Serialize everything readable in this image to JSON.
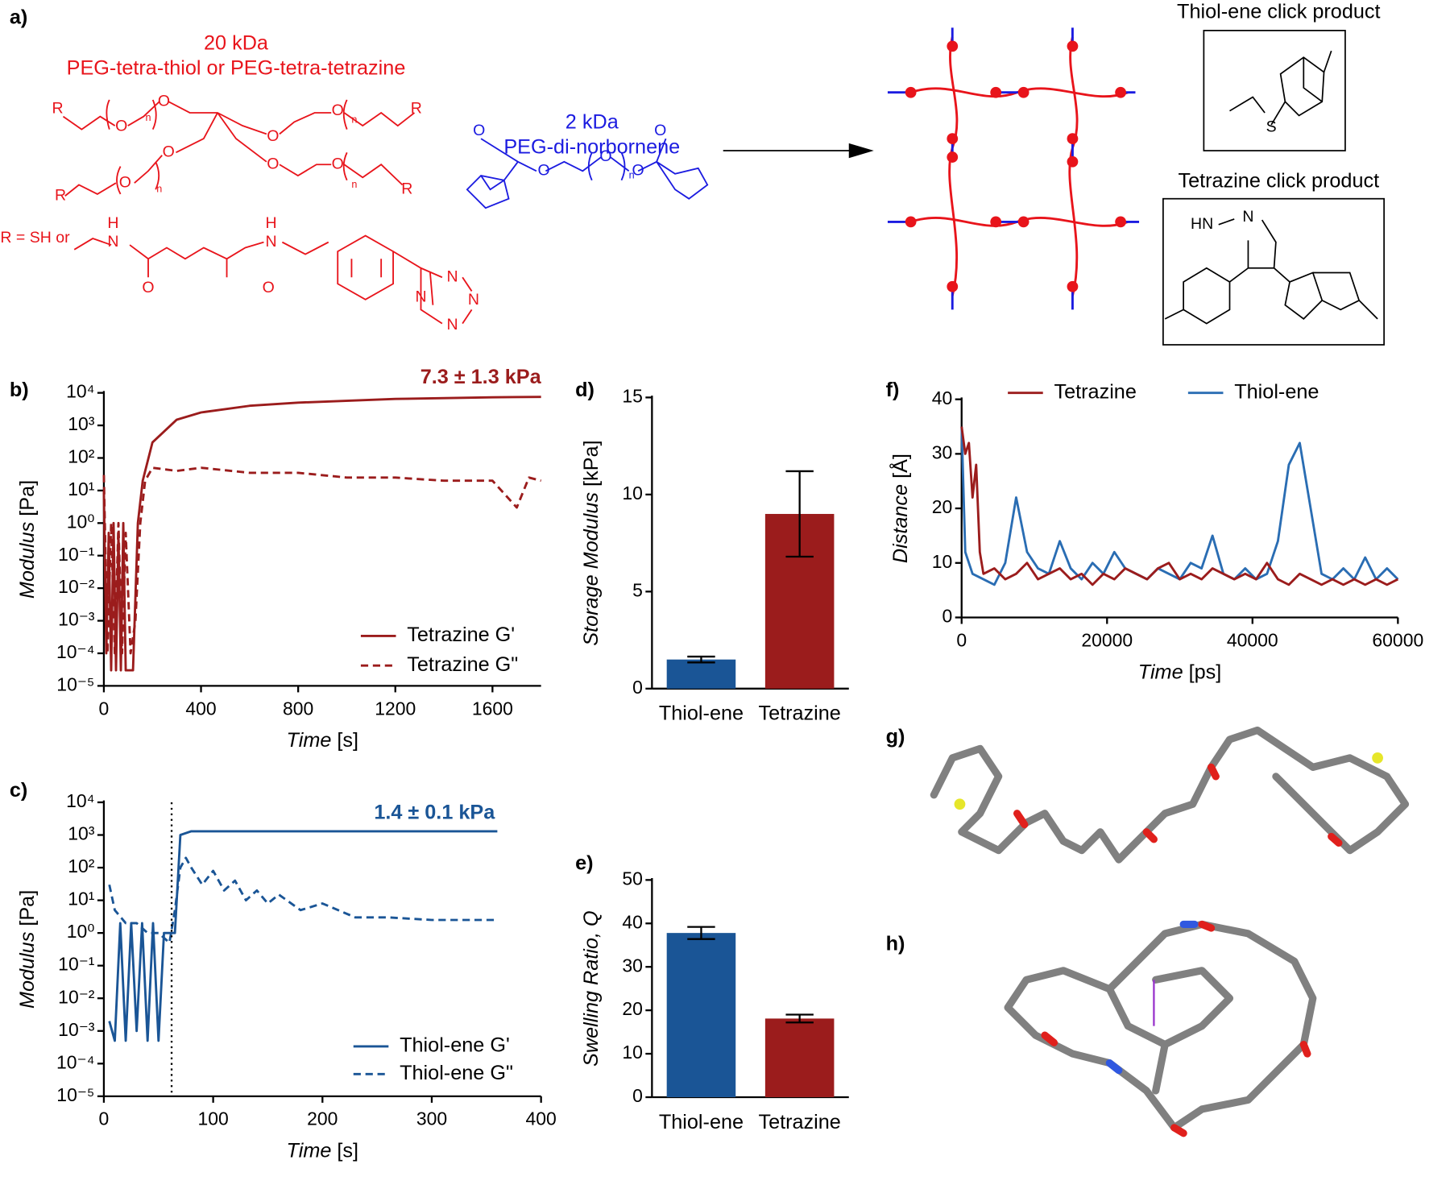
{
  "scheme": {
    "label": "a)",
    "peg4_mw": "20 kDa",
    "peg4_name": "PEG-tetra-thiol or PEG-tetra-tetrazine",
    "r_def": "R = SH or",
    "peg2_mw": "2 kDa",
    "peg2_name": "PEG-di-norbornene",
    "thiol_product": "Thiol-ene click product",
    "tetrazine_product": "Tetrazine click product",
    "atoms": [
      "R",
      "O",
      "n",
      "H",
      "N",
      "S",
      "HN"
    ]
  },
  "panel_labels": {
    "g": "g)",
    "h": "h)"
  },
  "chart_data": [
    {
      "type": "line",
      "panel": "b)",
      "annotation": "7.3 ± 1.3 kPa",
      "annotation_color": "#9b1c1c",
      "xlabel": "Time",
      "xlabel_unit": "[s]",
      "ylabel": "Modulus",
      "ylabel_unit": "[Pa]",
      "xlim": [
        0,
        1800
      ],
      "xticks": [
        0,
        400,
        800,
        1200,
        1600
      ],
      "yscale": "log",
      "ylim": [
        1e-05,
        10000
      ],
      "yticks": [
        {
          "value": 10000,
          "label": "10⁴"
        },
        {
          "value": 1000,
          "label": "10³"
        },
        {
          "value": 100,
          "label": "10²"
        },
        {
          "value": 10,
          "label": "10¹"
        },
        {
          "value": 1,
          "label": "10⁰"
        },
        {
          "value": 0.1,
          "label": "10⁻¹"
        },
        {
          "value": 0.01,
          "label": "10⁻²"
        },
        {
          "value": 0.001,
          "label": "10⁻³"
        },
        {
          "value": 0.0001,
          "label": "10⁻⁴"
        },
        {
          "value": 1e-05,
          "label": "10⁻⁵"
        }
      ],
      "legend": "lower right",
      "series": [
        {
          "name": "Tetrazine G'",
          "color": "#9b1c1c",
          "dash": false,
          "x": [
            0,
            10,
            20,
            30,
            40,
            50,
            60,
            70,
            80,
            90,
            100,
            120,
            140,
            160,
            200,
            300,
            400,
            600,
            800,
            1200,
            1600,
            1800
          ],
          "values": [
            10,
            0.0001,
            0.5,
            3e-05,
            1,
            3e-05,
            0.5,
            3e-05,
            1,
            3e-05,
            3e-05,
            3e-05,
            1,
            20,
            300,
            1500,
            2500,
            4000,
            5000,
            6500,
            7300,
            7500
          ]
        },
        {
          "name": "Tetrazine G\"",
          "color": "#9b1c1c",
          "dash": true,
          "x": [
            0,
            15,
            30,
            45,
            60,
            75,
            90,
            110,
            130,
            150,
            170,
            200,
            300,
            400,
            600,
            800,
            1000,
            1200,
            1400,
            1600,
            1700,
            1750,
            1800
          ],
          "values": [
            30,
            0.0001,
            1,
            0.0001,
            1,
            0.0001,
            0.5,
            0.0001,
            0.001,
            1,
            20,
            50,
            40,
            50,
            35,
            35,
            25,
            25,
            20,
            20,
            3,
            25,
            20
          ]
        }
      ]
    },
    {
      "type": "line",
      "panel": "c)",
      "annotation": "1.4 ± 0.1 kPa",
      "annotation_color": "#1a5596",
      "xlabel": "Time",
      "xlabel_unit": "[s]",
      "ylabel": "Modulus",
      "ylabel_unit": "[Pa]",
      "xlim": [
        0,
        400
      ],
      "xticks": [
        0,
        100,
        200,
        300,
        400
      ],
      "yscale": "log",
      "ylim": [
        1e-05,
        10000
      ],
      "yticks": [
        {
          "value": 10000,
          "label": "10⁴"
        },
        {
          "value": 1000,
          "label": "10³"
        },
        {
          "value": 100,
          "label": "10²"
        },
        {
          "value": 10,
          "label": "10¹"
        },
        {
          "value": 1,
          "label": "10⁰"
        },
        {
          "value": 0.1,
          "label": "10⁻¹"
        },
        {
          "value": 0.01,
          "label": "10⁻²"
        },
        {
          "value": 0.001,
          "label": "10⁻³"
        },
        {
          "value": 0.0001,
          "label": "10⁻⁴"
        },
        {
          "value": 1e-05,
          "label": "10⁻⁵"
        }
      ],
      "vline": 62,
      "legend": "lower right",
      "series": [
        {
          "name": "Thiol-ene G'",
          "color": "#1a5596",
          "dash": false,
          "x": [
            5,
            10,
            15,
            20,
            25,
            30,
            35,
            40,
            45,
            50,
            55,
            60,
            65,
            70,
            80,
            100,
            200,
            300,
            360
          ],
          "values": [
            0.002,
            0.0005,
            2,
            0.0005,
            2,
            0.001,
            2,
            0.0005,
            2,
            0.0005,
            1,
            1,
            1,
            1000,
            1300,
            1300,
            1300,
            1300,
            1300
          ]
        },
        {
          "name": "Thiol-ene G\"",
          "color": "#1a5596",
          "dash": true,
          "x": [
            5,
            10,
            20,
            30,
            40,
            50,
            60,
            65,
            70,
            75,
            80,
            90,
            100,
            110,
            120,
            130,
            140,
            150,
            160,
            180,
            200,
            230,
            260,
            300,
            360
          ],
          "values": [
            30,
            5,
            2,
            2,
            1,
            1,
            0.5,
            5,
            100,
            200,
            100,
            30,
            80,
            20,
            40,
            10,
            20,
            8,
            15,
            5,
            8,
            3,
            3,
            2.5,
            2.5
          ]
        }
      ]
    },
    {
      "type": "bar",
      "panel": "d)",
      "ylabel": "Storage Modulus",
      "ylabel_unit": "[kPa]",
      "categories": [
        "Thiol-ene",
        "Tetrazine"
      ],
      "values": [
        1.5,
        9.0
      ],
      "errors": [
        0.15,
        2.2
      ],
      "colors": [
        "#1a5596",
        "#9b1c1c"
      ],
      "ylim": [
        0,
        15
      ],
      "yticks": [
        0,
        5,
        10,
        15
      ]
    },
    {
      "type": "bar",
      "panel": "e)",
      "ylabel": "Swelling Ratio, Q",
      "categories": [
        "Thiol-ene",
        "Tetrazine"
      ],
      "values": [
        37.8,
        18.1
      ],
      "errors": [
        1.4,
        0.9
      ],
      "colors": [
        "#1a5596",
        "#9b1c1c"
      ],
      "ylim": [
        0,
        50
      ],
      "yticks": [
        0,
        10,
        20,
        30,
        40,
        50
      ]
    },
    {
      "type": "line",
      "panel": "f)",
      "xlabel": "Time",
      "xlabel_unit": "[ps]",
      "ylabel": "Distance",
      "ylabel_unit": "[Å]",
      "xlim": [
        0,
        60000
      ],
      "xticks": [
        0,
        20000,
        40000,
        60000
      ],
      "ylim": [
        0,
        40
      ],
      "yticks": [
        0,
        10,
        20,
        30,
        40
      ],
      "legend": "upper center",
      "series": [
        {
          "name": "Tetrazine",
          "color": "#9b1c1c",
          "dash": false,
          "x": [
            0,
            500,
            1000,
            1500,
            2000,
            2500,
            3000,
            4500,
            6000,
            7500,
            9000,
            10500,
            12000,
            13500,
            15000,
            16500,
            18000,
            19500,
            21000,
            22500,
            24000,
            25500,
            27000,
            28500,
            30000,
            31500,
            33000,
            34500,
            36000,
            37500,
            39000,
            40500,
            42000,
            43500,
            45000,
            46500,
            48000,
            49500,
            51000,
            52500,
            54000,
            55500,
            57000,
            58500,
            60000
          ],
          "values": [
            35,
            30,
            32,
            22,
            28,
            12,
            8,
            9,
            7,
            8,
            10,
            7,
            8,
            9,
            7,
            8,
            6,
            8,
            7,
            9,
            8,
            7,
            9,
            10,
            7,
            8,
            7,
            9,
            8,
            7,
            8,
            7,
            10,
            7,
            6,
            8,
            7,
            6,
            7,
            6,
            7,
            6,
            7,
            6,
            7
          ]
        },
        {
          "name": "Thiol-ene",
          "color": "#2a6db3",
          "dash": false,
          "x": [
            0,
            500,
            1500,
            3000,
            4500,
            6000,
            7500,
            9000,
            10500,
            12000,
            13500,
            15000,
            16500,
            18000,
            19500,
            21000,
            22500,
            24000,
            25500,
            27000,
            28500,
            30000,
            31500,
            33000,
            34500,
            36000,
            37500,
            39000,
            40500,
            42000,
            43500,
            45000,
            46500,
            48000,
            49500,
            51000,
            52500,
            54000,
            55500,
            57000,
            58500,
            60000
          ],
          "values": [
            35,
            12,
            8,
            7,
            6,
            10,
            22,
            12,
            9,
            8,
            14,
            9,
            7,
            10,
            8,
            12,
            9,
            8,
            7,
            9,
            8,
            7,
            10,
            9,
            15,
            8,
            7,
            9,
            7,
            8,
            14,
            28,
            32,
            20,
            8,
            7,
            9,
            7,
            11,
            7,
            9,
            7
          ]
        }
      ]
    }
  ]
}
